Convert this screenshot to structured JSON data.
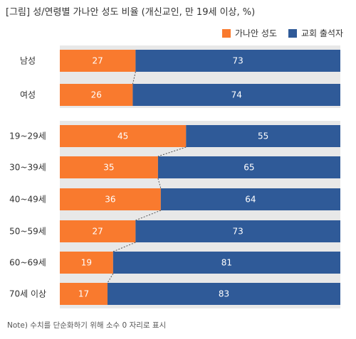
{
  "title": "[그림] 성/연령별 가나안 성도 비율 (개신교인, 만 19세 이상, %)",
  "note": "Note) 수치를 단순화하기 위해 소수 0 자리로 표시",
  "colors": {
    "series1": "#f97a2e",
    "series2": "#2f5a98",
    "panel": "#e8e8e8"
  },
  "chart_data": {
    "type": "bar",
    "orientation": "horizontal",
    "stacked": true,
    "percent": true,
    "title": "[그림] 성/연령별 가나안 성도 비율 (개신교인, 만 19세 이상, %)",
    "categories": [
      "남성",
      "여성",
      "19~29세",
      "30~39세",
      "40~49세",
      "50~59세",
      "60~69세",
      "70세 이상"
    ],
    "groups": [
      {
        "categories": [
          "남성",
          "여성"
        ]
      },
      {
        "categories": [
          "19~29세",
          "30~39세",
          "40~49세",
          "50~59세",
          "60~69세",
          "70세 이상"
        ]
      }
    ],
    "series": [
      {
        "name": "가나안 성도",
        "values": [
          27,
          26,
          45,
          35,
          36,
          27,
          19,
          17
        ]
      },
      {
        "name": "교회 출석자",
        "values": [
          73,
          74,
          55,
          65,
          64,
          73,
          81,
          83
        ]
      }
    ],
    "xlim": [
      0,
      100
    ],
    "grid": false,
    "legend_position": "top-right",
    "connector_lines": true
  }
}
